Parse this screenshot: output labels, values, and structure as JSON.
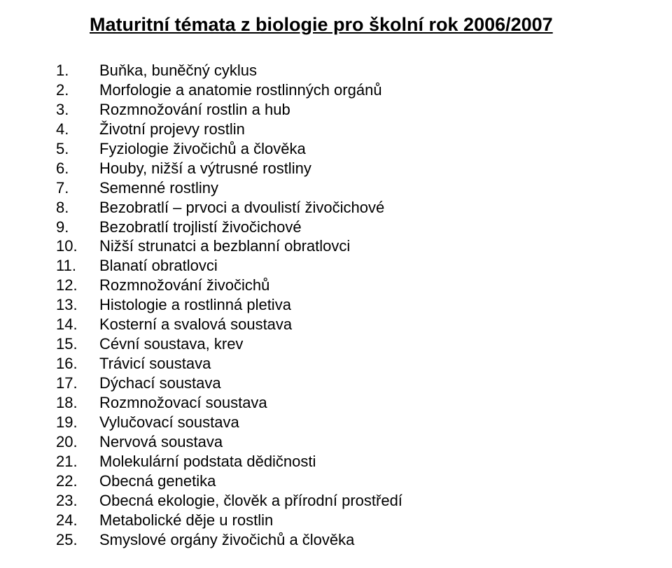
{
  "title": "Maturitní témata z biologie pro školní rok 2006/2007",
  "title_fontsize": 27,
  "title_fontweight": "bold",
  "item_fontsize": 22,
  "text_color": "#000000",
  "background_color": "#ffffff",
  "items": [
    {
      "n": "1.",
      "t": "Buňka, buněčný cyklus"
    },
    {
      "n": "2.",
      "t": "Morfologie a anatomie rostlinných orgánů"
    },
    {
      "n": "3.",
      "t": "Rozmnožování rostlin a hub"
    },
    {
      "n": "4.",
      "t": "Životní projevy rostlin"
    },
    {
      "n": "5.",
      "t": "Fyziologie živočichů a člověka"
    },
    {
      "n": "6.",
      "t": "Houby, nižší a výtrusné rostliny"
    },
    {
      "n": "7.",
      "t": "Semenné rostliny"
    },
    {
      "n": "8.",
      "t": "Bezobratlí – prvoci a dvoulistí živočichové"
    },
    {
      "n": "9.",
      "t": "Bezobratlí trojlistí živočichové"
    },
    {
      "n": "10.",
      "t": "Nižší strunatci a bezblanní obratlovci"
    },
    {
      "n": "11.",
      "t": "Blanatí obratlovci"
    },
    {
      "n": "12.",
      "t": "Rozmnožování živočichů"
    },
    {
      "n": "13.",
      "t": "Histologie a rostlinná pletiva"
    },
    {
      "n": "14.",
      "t": "Kosterní a svalová soustava"
    },
    {
      "n": "15.",
      "t": "Cévní soustava, krev"
    },
    {
      "n": "16.",
      "t": "Trávicí soustava"
    },
    {
      "n": "17.",
      "t": "Dýchací soustava"
    },
    {
      "n": "18.",
      "t": "Rozmnožovací soustava"
    },
    {
      "n": "19.",
      "t": "Vylučovací soustava"
    },
    {
      "n": "20.",
      "t": "Nervová soustava"
    },
    {
      "n": "21.",
      "t": "Molekulární podstata dědičnosti"
    },
    {
      "n": "22.",
      "t": "Obecná genetika"
    },
    {
      "n": "23.",
      "t": "Obecná ekologie, člověk a přírodní prostředí"
    },
    {
      "n": "24.",
      "t": "Metabolické děje u rostlin"
    },
    {
      "n": "25.",
      "t": "Smyslové orgány živočichů a člověka"
    }
  ]
}
